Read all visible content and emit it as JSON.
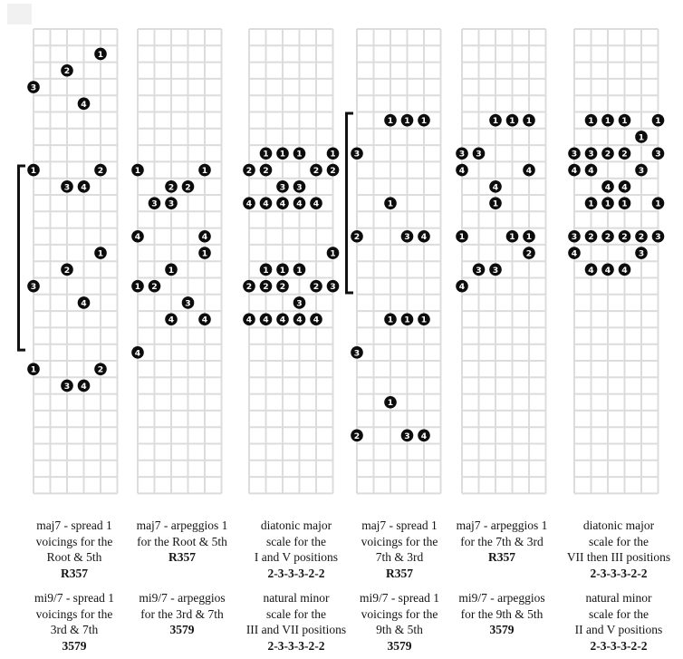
{
  "colors": {
    "background": "#ffffff",
    "grid_line": "#dcdcdc",
    "dot_fill": "#0c0c0c",
    "dot_number": "#ffffff",
    "bracket": "#111111",
    "caption_text": "#141414"
  },
  "fretboards": [
    {
      "name": "maj7-spread-1-root-5th",
      "dots": [
        [
          4,
          1,
          1
        ],
        [
          2,
          2,
          2
        ],
        [
          0,
          3,
          3
        ],
        [
          3,
          4,
          4
        ],
        [
          0,
          8,
          1
        ],
        [
          4,
          8,
          2
        ],
        [
          2,
          9,
          3
        ],
        [
          3,
          9,
          4
        ],
        [
          4,
          13,
          1
        ],
        [
          2,
          14,
          2
        ],
        [
          0,
          15,
          3
        ],
        [
          3,
          16,
          4
        ],
        [
          0,
          20,
          1
        ],
        [
          4,
          20,
          2
        ],
        [
          2,
          21,
          3
        ],
        [
          3,
          21,
          4
        ]
      ]
    },
    {
      "name": "maj7-arpeggios-1-root-5th",
      "dots": [
        [
          0,
          8,
          1
        ],
        [
          4,
          8,
          1
        ],
        [
          2,
          9,
          2
        ],
        [
          3,
          9,
          2
        ],
        [
          1,
          10,
          3
        ],
        [
          2,
          10,
          3
        ],
        [
          0,
          12,
          4
        ],
        [
          4,
          12,
          4
        ],
        [
          4,
          13,
          1
        ],
        [
          2,
          14,
          1
        ],
        [
          0,
          15,
          1
        ],
        [
          1,
          15,
          2
        ],
        [
          3,
          16,
          3
        ],
        [
          2,
          17,
          4
        ],
        [
          4,
          17,
          4
        ],
        [
          0,
          19,
          4
        ]
      ]
    },
    {
      "name": "diatonic-major-scale-I-V",
      "dots": [
        [
          1,
          7,
          1
        ],
        [
          2,
          7,
          1
        ],
        [
          3,
          7,
          1
        ],
        [
          5,
          7,
          1
        ],
        [
          0,
          8,
          2
        ],
        [
          1,
          8,
          2
        ],
        [
          4,
          8,
          2
        ],
        [
          5,
          8,
          2
        ],
        [
          2,
          9,
          3
        ],
        [
          3,
          9,
          3
        ],
        [
          0,
          10,
          4
        ],
        [
          1,
          10,
          4
        ],
        [
          2,
          10,
          4
        ],
        [
          3,
          10,
          4
        ],
        [
          4,
          10,
          4
        ],
        [
          5,
          13,
          1
        ],
        [
          1,
          14,
          1
        ],
        [
          2,
          14,
          1
        ],
        [
          3,
          14,
          1
        ],
        [
          0,
          15,
          2
        ],
        [
          1,
          15,
          2
        ],
        [
          2,
          15,
          2
        ],
        [
          4,
          15,
          2
        ],
        [
          5,
          15,
          3
        ],
        [
          3,
          16,
          3
        ],
        [
          0,
          17,
          4
        ],
        [
          1,
          17,
          4
        ],
        [
          2,
          17,
          4
        ],
        [
          3,
          17,
          4
        ],
        [
          4,
          17,
          4
        ]
      ]
    },
    {
      "name": "maj7-spread-1-7th-3rd",
      "dots": [
        [
          2,
          5,
          1
        ],
        [
          3,
          5,
          1
        ],
        [
          4,
          5,
          1
        ],
        [
          0,
          7,
          3
        ],
        [
          2,
          10,
          1
        ],
        [
          0,
          12,
          2
        ],
        [
          3,
          12,
          3
        ],
        [
          4,
          12,
          4
        ],
        [
          2,
          17,
          1
        ],
        [
          3,
          17,
          1
        ],
        [
          4,
          17,
          1
        ],
        [
          0,
          19,
          3
        ],
        [
          2,
          22,
          1
        ],
        [
          0,
          24,
          2
        ],
        [
          3,
          24,
          3
        ],
        [
          4,
          24,
          4
        ]
      ]
    },
    {
      "name": "maj7-arpeggios-1-7th-3rd",
      "dots": [
        [
          2,
          5,
          1
        ],
        [
          3,
          5,
          1
        ],
        [
          4,
          5,
          1
        ],
        [
          0,
          7,
          3
        ],
        [
          1,
          7,
          3
        ],
        [
          0,
          8,
          4
        ],
        [
          4,
          8,
          4
        ],
        [
          2,
          9,
          4
        ],
        [
          2,
          10,
          1
        ],
        [
          0,
          12,
          1
        ],
        [
          3,
          12,
          1
        ],
        [
          4,
          12,
          1
        ],
        [
          4,
          13,
          2
        ],
        [
          1,
          14,
          3
        ],
        [
          2,
          14,
          3
        ],
        [
          0,
          15,
          4
        ]
      ]
    },
    {
      "name": "diatonic-major-scale-VII-III",
      "dots": [
        [
          1,
          5,
          1
        ],
        [
          2,
          5,
          1
        ],
        [
          3,
          5,
          1
        ],
        [
          5,
          5,
          1
        ],
        [
          4,
          6,
          1
        ],
        [
          0,
          7,
          3
        ],
        [
          1,
          7,
          3
        ],
        [
          2,
          7,
          2
        ],
        [
          3,
          7,
          2
        ],
        [
          5,
          7,
          3
        ],
        [
          0,
          8,
          4
        ],
        [
          1,
          8,
          4
        ],
        [
          4,
          8,
          3
        ],
        [
          2,
          9,
          4
        ],
        [
          3,
          9,
          4
        ],
        [
          1,
          10,
          1
        ],
        [
          2,
          10,
          1
        ],
        [
          3,
          10,
          1
        ],
        [
          5,
          10,
          1
        ],
        [
          0,
          12,
          3
        ],
        [
          1,
          12,
          2
        ],
        [
          2,
          12,
          2
        ],
        [
          3,
          12,
          2
        ],
        [
          4,
          12,
          2
        ],
        [
          5,
          12,
          3
        ],
        [
          0,
          13,
          4
        ],
        [
          4,
          13,
          3
        ],
        [
          1,
          14,
          4
        ],
        [
          2,
          14,
          4
        ],
        [
          3,
          14,
          4
        ]
      ]
    }
  ],
  "brackets": [
    {
      "name": "position-bracket-grid-1",
      "grid_index": 0,
      "fret_start": 8.25,
      "fret_end": 19.35
    },
    {
      "name": "position-bracket-grid-4",
      "grid_index": 3,
      "fret_start": 5.08,
      "fret_end": 15.9
    }
  ],
  "captions_row1": [
    {
      "lines": [
        "maj7 - spread 1",
        "voicings for the",
        "Root & 5th"
      ],
      "formula": "R357"
    },
    {
      "lines": [
        "maj7 - arpeggios 1",
        "for the Root & 5th"
      ],
      "formula": "R357"
    },
    {
      "lines": [
        "diatonic major",
        "scale for the",
        "I and V positions"
      ],
      "formula": "2-3-3-3-2-2"
    },
    {
      "lines": [
        "maj7 - spread 1",
        "voicings for the",
        "7th & 3rd"
      ],
      "formula": "R357"
    },
    {
      "lines": [
        "maj7 - arpeggios 1",
        "for the 7th & 3rd"
      ],
      "formula": "R357"
    },
    {
      "lines": [
        "diatonic major",
        "scale for the",
        "VII then III positions"
      ],
      "formula": "2-3-3-3-2-2"
    }
  ],
  "captions_row2": [
    {
      "lines": [
        "mi9/7 - spread 1",
        "voicings for the",
        "3rd & 7th"
      ],
      "formula": "3579"
    },
    {
      "lines": [
        "mi9/7 - arpeggios",
        "for the 3rd & 7th"
      ],
      "formula": "3579"
    },
    {
      "lines": [
        "natural minor",
        "scale for the",
        "III and VII positions"
      ],
      "formula": "2-3-3-3-2-2"
    },
    {
      "lines": [
        "mi9/7 - spread 1",
        "voicings for the",
        "9th & 5th"
      ],
      "formula": "3579"
    },
    {
      "lines": [
        "mi9/7 - arpeggios",
        "for the 9th & 5th"
      ],
      "formula": "3579"
    },
    {
      "lines": [
        "natural minor",
        "scale for the",
        "II and V positions"
      ],
      "formula": "2-3-3-3-2-2"
    }
  ]
}
